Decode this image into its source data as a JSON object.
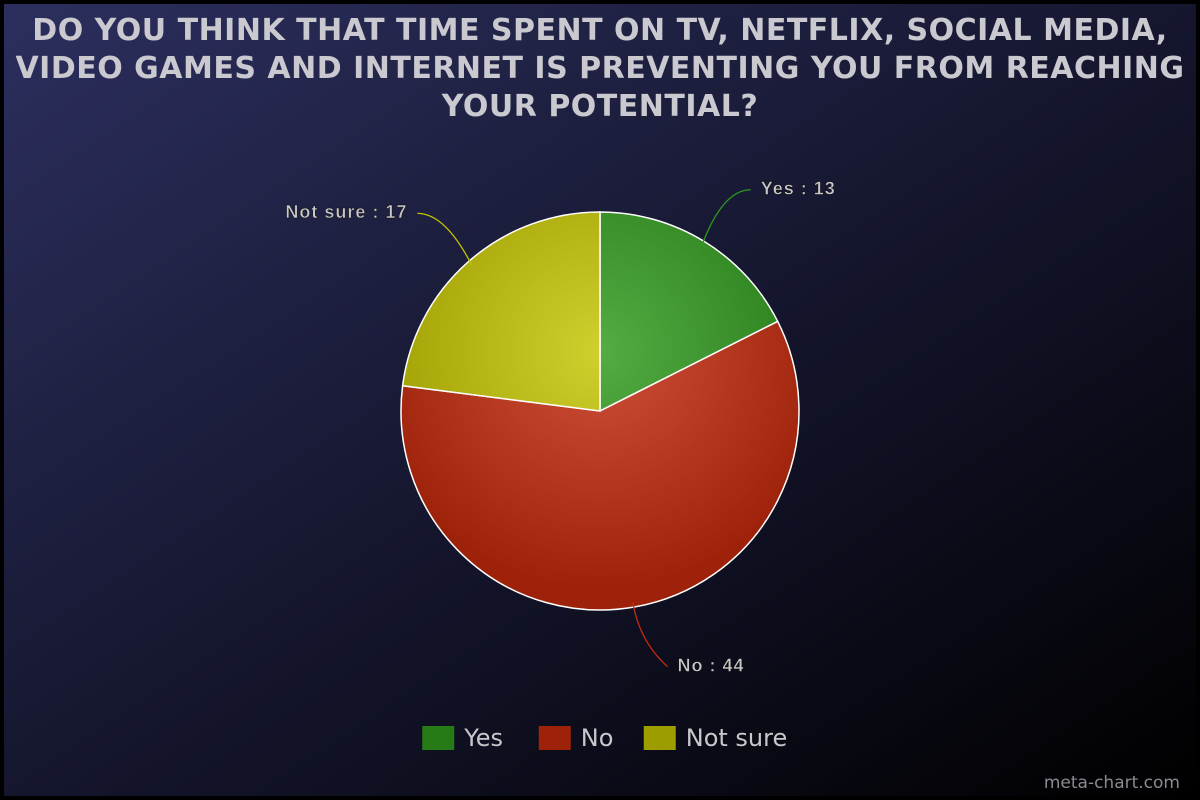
{
  "chart_data": {
    "type": "pie",
    "title": "DO YOU THINK THAT TIME SPENT ON TV, NETFLIX, SOCIAL MEDIA, VIDEO GAMES AND INTERNET IS PREVENTING YOU FROM REACHING YOUR POTENTIAL?",
    "categories": [
      "Yes",
      "No",
      "Not sure"
    ],
    "values": [
      13,
      44,
      17
    ],
    "value_labels": [
      "Yes : 13",
      "No : 44",
      "Not sure : 17"
    ],
    "colors": [
      "#2f9a1c",
      "#c52a0c",
      "#c4c400"
    ],
    "legend": "bottom",
    "watermark": "meta-chart.com"
  }
}
